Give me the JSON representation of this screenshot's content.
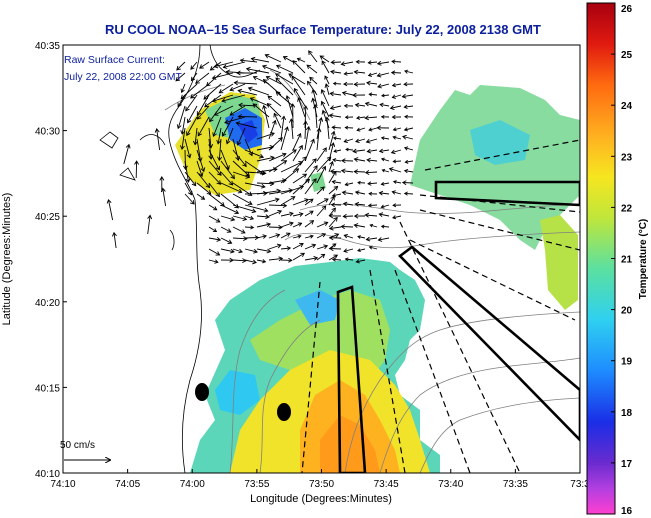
{
  "title": "RU COOL  NOAA–15  Sea Surface Temperature:  July 22, 2008 2138 GMT",
  "legend": {
    "line1": "Raw Surface Current:",
    "line2": "July 22, 2008 22:00 GMT"
  },
  "scale_label": "50 cm/s",
  "colors": {
    "title": "#0b1e9c",
    "land": "#ffffff",
    "colormap": [
      "#ff3fd0",
      "#6a2bcf",
      "#1a2ee6",
      "#1e8cff",
      "#2fd0f0",
      "#5be0a0",
      "#c0e63a",
      "#f6e620",
      "#ffb020",
      "#ff6a10",
      "#e01a10",
      "#a80010"
    ]
  },
  "chart_data": {
    "type": "heatmap",
    "title": "RU COOL  NOAA–15  Sea Surface Temperature:  July 22, 2008 2138 GMT",
    "xlabel": "Longitude (Degrees:Minutes)",
    "ylabel": "Latitude (Degrees:Minutes)",
    "x_ticks": [
      "74:10",
      "74:05",
      "74:00",
      "73:55",
      "73:50",
      "73:45",
      "73:40",
      "73:35",
      "73:3"
    ],
    "x_range_minutes_west": [
      10,
      30
    ],
    "y_ticks": [
      "40:10",
      "40:15",
      "40:20",
      "40:25",
      "40:30",
      "40:35"
    ],
    "y_range_minutes": [
      10,
      35
    ],
    "colorbar": {
      "label": "Temperature (°C)",
      "ticks": [
        "16",
        "17",
        "18",
        "19",
        "20",
        "21",
        "22",
        "23",
        "24",
        "25",
        "26"
      ],
      "range": [
        16,
        26
      ]
    },
    "sst_regions": [
      {
        "name": "southern-warm-pool",
        "approx_temp_c": 22.8
      },
      {
        "name": "southwest-cool-nearshore",
        "approx_temp_c": 20.5
      },
      {
        "name": "cold-upwelling-core",
        "approx_temp_c": 17.5
      },
      {
        "name": "northeast-band",
        "approx_temp_c": 21.2
      }
    ],
    "mooring_points": 2,
    "current_vector_scale": "50 cm/s"
  }
}
